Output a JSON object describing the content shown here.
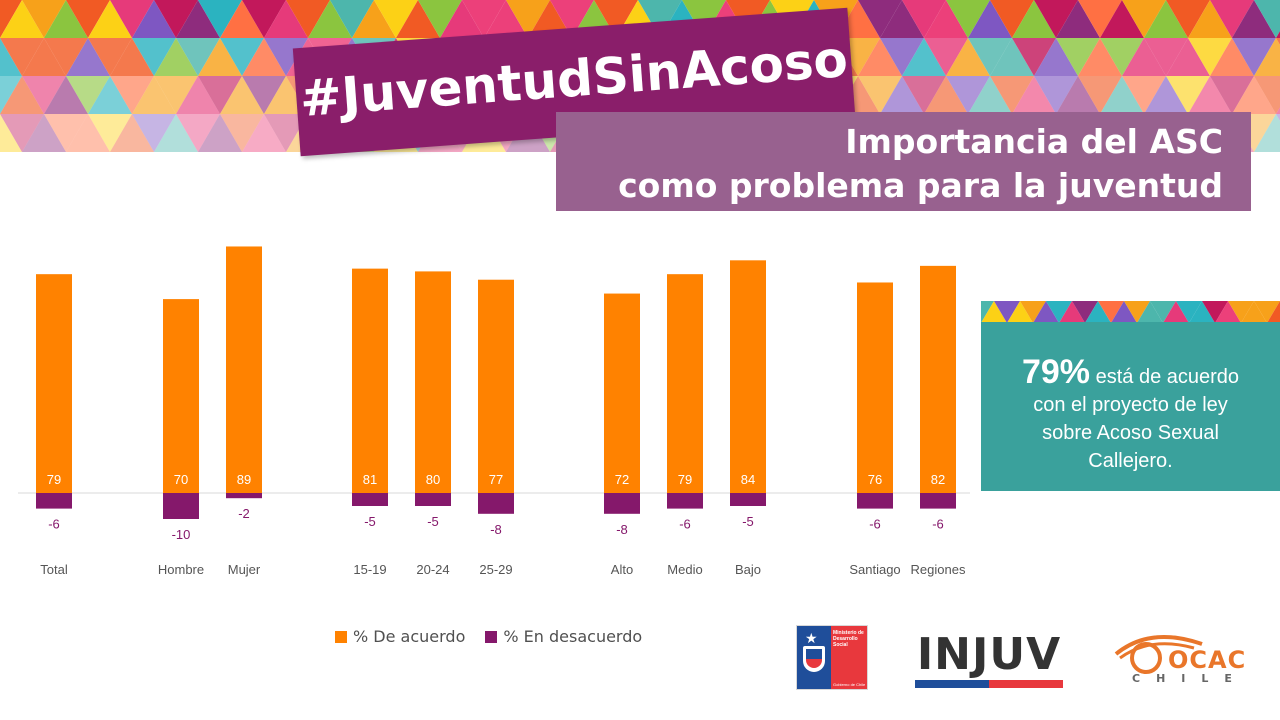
{
  "banner": {
    "hashtag": "#JuventudSinAcoso"
  },
  "title": {
    "line1": "Importancia del ASC",
    "line2": "como problema para la juventud"
  },
  "colors": {
    "agree": "#ff8200",
    "disagree": "#85186b",
    "title_box": "#98618f",
    "callout": "#3aa19c",
    "hashtag_band": "#8a1e6a"
  },
  "chart_data": {
    "type": "bar",
    "categories": [
      "Total",
      "Hombre",
      "Mujer",
      "15-19",
      "20-24",
      "25-29",
      "Alto",
      "Medio",
      "Bajo",
      "Santiago",
      "Regiones"
    ],
    "groups": [
      [
        "Total"
      ],
      [
        "Hombre",
        "Mujer"
      ],
      [
        "15-19",
        "20-24",
        "25-29"
      ],
      [
        "Alto",
        "Medio",
        "Bajo"
      ],
      [
        "Santiago",
        "Regiones"
      ]
    ],
    "series": [
      {
        "name": "% De acuerdo",
        "values": [
          79,
          70,
          89,
          81,
          80,
          77,
          72,
          79,
          84,
          76,
          82
        ]
      },
      {
        "name": "% En desacuerdo",
        "values": [
          -6,
          -10,
          -2,
          -5,
          -5,
          -8,
          -8,
          -6,
          -5,
          -6,
          -6
        ]
      }
    ],
    "title": "",
    "xlabel": "",
    "ylabel": "",
    "ylim": [
      -10,
      89
    ],
    "grid": false,
    "legend": "bottom"
  },
  "callout": {
    "percent": "79%",
    "line1": "está de acuerdo",
    "line2": "con el proyecto de ley",
    "line3": "sobre Acoso Sexual",
    "line4": "Callejero."
  },
  "logos": {
    "ministerio": {
      "lines": [
        "Ministerio de",
        "Desarrollo",
        "Social"
      ],
      "footer": "Gobierno de Chile"
    },
    "injuv": "INJUV",
    "ocac": {
      "word": "OCAC",
      "sub": "CHILE"
    }
  }
}
